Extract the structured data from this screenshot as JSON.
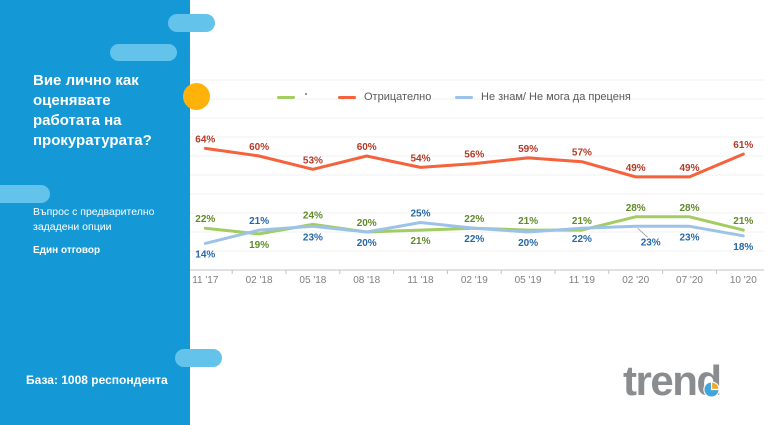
{
  "slide": {
    "question_title": "Вие лично как оценявате работата на прокуратурата?",
    "question_type_note": "Въпрос с предварително зададени опции",
    "answer_note": "Един отговор",
    "base_note": "База: 1008 респондента",
    "logo_text": "trend"
  },
  "colors": {
    "sidebar": "#1499d6",
    "pill": "#63c3eb",
    "accent_circle": "#ffb30a",
    "grid": "#f2f2f2",
    "axis": "#c3c3c3",
    "category_label": "#7f7f7f",
    "legend_text": "#595959",
    "callout_line": "#999999",
    "logo_gray": "#8a8d90",
    "logo_pie_blue": "#3ea6da",
    "logo_pie_yellow": "#f6a821"
  },
  "legend": {
    "items": [
      {
        "label": ""
      },
      {
        "label": "Отрицателно"
      },
      {
        "label": "Не знам/ Не мога да преценя"
      }
    ]
  },
  "chart_data": {
    "type": "line",
    "title": "",
    "xlabel": "",
    "ylabel": "",
    "ylim": [
      0,
      100
    ],
    "grid": true,
    "legend_position": "top",
    "value_labels": true,
    "categories": [
      "11 '17",
      "02 '18",
      "05 '18",
      "08 '18",
      "11 '18",
      "02 '19",
      "05 '19",
      "11 '19",
      "02 '20",
      "07 '20",
      "10 '20"
    ],
    "series": [
      {
        "name": "",
        "color": "#a3cc61",
        "label_color": "#62892a",
        "values": [
          22,
          19,
          24,
          20,
          21,
          22,
          21,
          21,
          28,
          28,
          21
        ],
        "label_side": [
          "above",
          "below",
          "above",
          "above",
          "below",
          "above",
          "above",
          "above",
          "above",
          "above",
          "above"
        ]
      },
      {
        "name": "Отрицателно",
        "color": "#f5623c",
        "label_color": "#b43b26",
        "values": [
          64,
          60,
          53,
          60,
          54,
          56,
          59,
          57,
          49,
          49,
          61
        ],
        "label_side": [
          "above",
          "above",
          "above",
          "above",
          "above",
          "above",
          "above",
          "above",
          "above",
          "above",
          "above"
        ]
      },
      {
        "name": "Не знам/ Не мога да преценя",
        "color": "#9cc3e7",
        "label_color": "#2768a9",
        "values": [
          14,
          21,
          23,
          20,
          25,
          22,
          20,
          22,
          23,
          23,
          18
        ],
        "label_side": [
          "below",
          "above",
          "below",
          "below",
          "above",
          "below",
          "below",
          "below",
          "below",
          "below",
          "below"
        ],
        "callout_index": 8
      }
    ]
  }
}
